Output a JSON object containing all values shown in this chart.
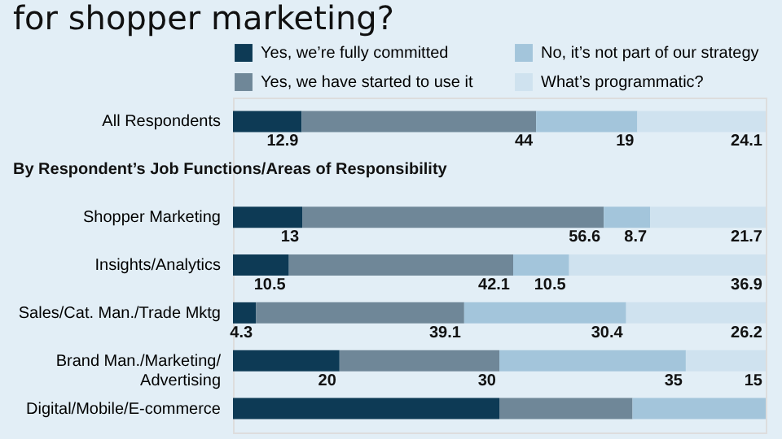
{
  "chart_data": {
    "type": "bar",
    "orientation": "horizontal",
    "stacked": true,
    "title": "for shopper marketing?",
    "categories": [
      "All Respondents",
      "Shopper Marketing",
      "Insights/Analytics",
      "Sales/Cat. Man./Trade Mktg",
      "Brand Man./Marketing/Advertising",
      "Digital/Mobile/E-commerce"
    ],
    "series": [
      {
        "name": "Yes, we’re fully committed",
        "color": "#0d3a55",
        "values": [
          12.9,
          13,
          10.5,
          4.3,
          20,
          50
        ],
        "value_labels": [
          "12.9",
          "13",
          "10.5",
          "4.3",
          "20",
          null
        ]
      },
      {
        "name": "Yes, we have started to use it",
        "color": "#6f8798",
        "values": [
          44,
          56.6,
          42.1,
          39.1,
          30,
          25
        ],
        "value_labels": [
          "44",
          "56.6",
          "42.1",
          "39.1",
          "30",
          null
        ]
      },
      {
        "name": "No, it’s not part of our strategy",
        "color": "#a3c5db",
        "values": [
          19,
          8.7,
          10.5,
          30.4,
          35,
          25
        ],
        "value_labels": [
          "19",
          "8.7",
          "10.5",
          "30.4",
          "35",
          null
        ]
      },
      {
        "name": "What’s programmatic?",
        "color": "#cfe2ef",
        "values": [
          24.1,
          21.7,
          36.9,
          26.2,
          15,
          0
        ],
        "value_labels": [
          "24.1",
          "21.7",
          "36.9",
          "26.2",
          "15",
          null
        ]
      }
    ],
    "annotations": [
      "By Respondent’s Job Functions/Areas of Responsibility"
    ],
    "legend": "top"
  }
}
